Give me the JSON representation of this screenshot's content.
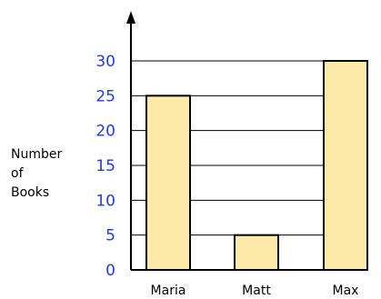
{
  "chart_data": {
    "type": "bar",
    "categories": [
      "Maria",
      "Matt",
      "Max"
    ],
    "values": [
      25,
      5,
      30
    ],
    "title": "",
    "xlabel": "",
    "ylabel": "Number\nof\nBooks",
    "ylim": [
      0,
      30
    ],
    "yticks": [
      "0",
      "5",
      "10",
      "15",
      "20",
      "25",
      "30"
    ],
    "grid": true,
    "colors": {
      "bar_fill": "#fde9a8",
      "bar_stroke": "#000000",
      "tick_label": "#1f3fd6",
      "grid": "#000000"
    }
  }
}
